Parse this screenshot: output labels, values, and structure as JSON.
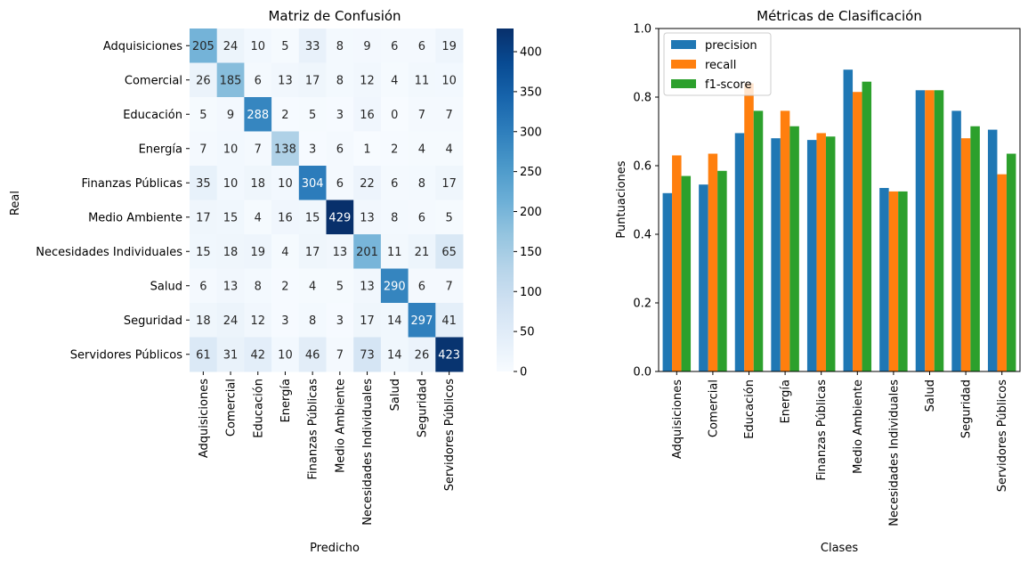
{
  "chart_data": [
    {
      "type": "heatmap",
      "title": "Matriz de Confusión",
      "xlabel": "Predicho",
      "ylabel": "Real",
      "rows": [
        "Adquisiciones",
        "Comercial",
        "Educación",
        "Energía",
        "Finanzas Públicas",
        "Medio Ambiente",
        "Necesidades Individuales",
        "Salud",
        "Seguridad",
        "Servidores Públicos"
      ],
      "columns": [
        "Adquisiciones",
        "Comercial",
        "Educación",
        "Energía",
        "Finanzas Públicas",
        "Medio Ambiente",
        "Necesidades Individuales",
        "Salud",
        "Seguridad",
        "Servidores Públicos"
      ],
      "values": [
        [
          205,
          24,
          10,
          5,
          33,
          8,
          9,
          6,
          6,
          19
        ],
        [
          26,
          185,
          6,
          13,
          17,
          8,
          12,
          4,
          11,
          10
        ],
        [
          5,
          9,
          288,
          2,
          5,
          3,
          16,
          0,
          7,
          7
        ],
        [
          7,
          10,
          7,
          138,
          3,
          6,
          1,
          2,
          4,
          4
        ],
        [
          35,
          10,
          18,
          10,
          304,
          6,
          22,
          6,
          8,
          17
        ],
        [
          17,
          15,
          4,
          16,
          15,
          429,
          13,
          8,
          6,
          5
        ],
        [
          15,
          18,
          19,
          4,
          17,
          13,
          201,
          11,
          21,
          65
        ],
        [
          6,
          13,
          8,
          2,
          4,
          5,
          13,
          290,
          6,
          7
        ],
        [
          18,
          24,
          12,
          3,
          8,
          3,
          17,
          14,
          297,
          41
        ],
        [
          61,
          31,
          42,
          10,
          46,
          7,
          73,
          14,
          26,
          423
        ]
      ],
      "colormap": "Blues",
      "colorbar": {
        "min": 0,
        "max": 429,
        "ticks": [
          0,
          50,
          100,
          150,
          200,
          250,
          300,
          350,
          400
        ]
      }
    },
    {
      "type": "bar",
      "title": "Métricas de Clasificación",
      "xlabel": "Clases",
      "ylabel": "Puntuaciones",
      "ylim": [
        0,
        1.0
      ],
      "yticks": [
        "0.0",
        "0.2",
        "0.4",
        "0.6",
        "0.8",
        "1.0"
      ],
      "legend_position": "top-left",
      "categories": [
        "Adquisiciones",
        "Comercial",
        "Educación",
        "Energía",
        "Finanzas Públicas",
        "Medio Ambiente",
        "Necesidades Individuales",
        "Salud",
        "Seguridad",
        "Servidores Públicos"
      ],
      "series": [
        {
          "name": "precision",
          "color": "#1f77b4",
          "values": [
            0.52,
            0.545,
            0.695,
            0.68,
            0.675,
            0.88,
            0.535,
            0.82,
            0.76,
            0.705
          ]
        },
        {
          "name": "recall",
          "color": "#ff7f0e",
          "values": [
            0.63,
            0.635,
            0.84,
            0.76,
            0.695,
            0.815,
            0.525,
            0.82,
            0.68,
            0.575
          ]
        },
        {
          "name": "f1-score",
          "color": "#2ca02c",
          "values": [
            0.57,
            0.585,
            0.76,
            0.715,
            0.685,
            0.845,
            0.525,
            0.82,
            0.715,
            0.635
          ]
        }
      ]
    }
  ]
}
